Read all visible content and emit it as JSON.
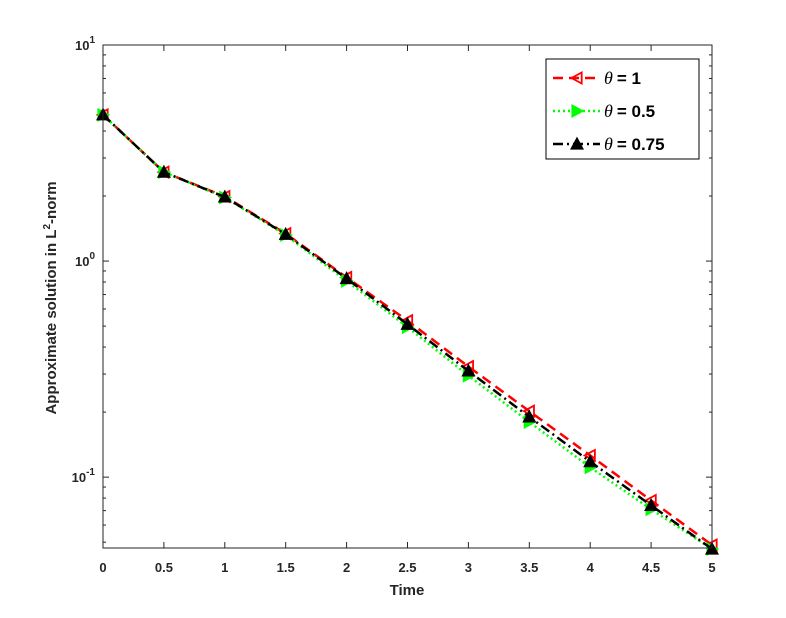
{
  "chart_data": {
    "type": "line",
    "title": "",
    "xlabel": "Time",
    "ylabel_main": "Approximate solution in L",
    "ylabel_sup": "2",
    "ylabel_tail": "-norm",
    "x": [
      0,
      0.5,
      1,
      1.5,
      2,
      2.5,
      3,
      3.5,
      4,
      4.5,
      5
    ],
    "xlim": [
      0,
      5
    ],
    "ylim": [
      0.047,
      10
    ],
    "yscale": "log",
    "grid": false,
    "legend_position": "top-right",
    "x_tick_labels": [
      "0",
      "0.5",
      "1",
      "1.5",
      "2",
      "2.5",
      "3",
      "3.5",
      "4",
      "4.5",
      "5"
    ],
    "y_ticks": [
      {
        "value": 10,
        "base": "10",
        "exp": "1"
      },
      {
        "value": 1,
        "base": "10",
        "exp": "0"
      },
      {
        "value": 0.1,
        "base": "10",
        "exp": "-1"
      }
    ],
    "series": [
      {
        "name": "= 1",
        "symbol": "θ",
        "color": "#ff0000",
        "line_style": "dashed",
        "marker": "triangle-left",
        "values": [
          4.75,
          2.58,
          1.99,
          1.34,
          0.84,
          0.53,
          0.325,
          0.202,
          0.126,
          0.078,
          0.0485
        ]
      },
      {
        "name": "= 0.5",
        "symbol": "θ",
        "color": "#00ff00",
        "line_style": "dotted",
        "marker": "triangle-right",
        "values": [
          4.75,
          2.58,
          1.97,
          1.32,
          0.81,
          0.495,
          0.295,
          0.18,
          0.111,
          0.071,
          0.0465
        ]
      },
      {
        "name": "= 0.75",
        "symbol": "θ",
        "color": "#000000",
        "line_style": "dashdot",
        "marker": "triangle-up",
        "values": [
          4.75,
          2.58,
          1.98,
          1.33,
          0.83,
          0.51,
          0.31,
          0.19,
          0.118,
          0.074,
          0.0465
        ]
      }
    ]
  }
}
